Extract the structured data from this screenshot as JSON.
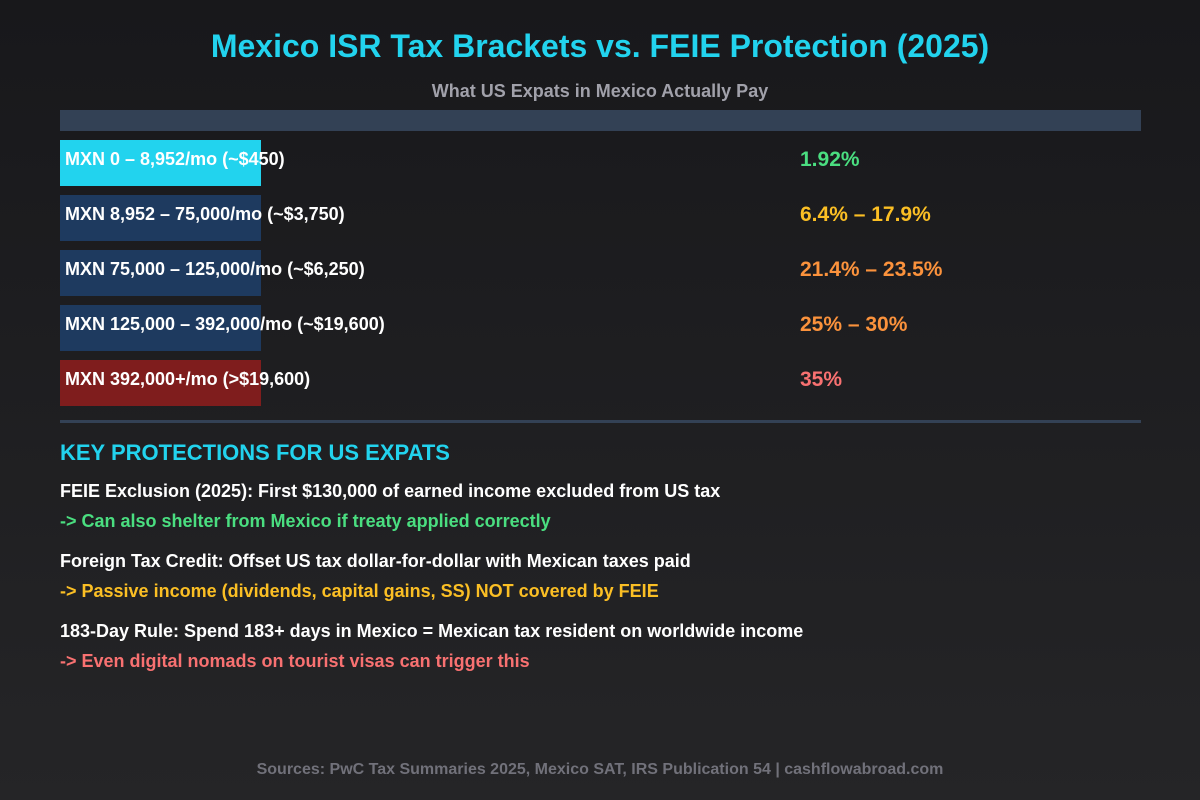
{
  "header": {
    "title": "Mexico ISR Tax Brackets vs. FEIE Protection (2025)",
    "subtitle": "What US Expats in Mexico Actually Pay"
  },
  "brackets": [
    {
      "label": "MXN 0 – 8,952/mo (~$450)",
      "rate": "1.92%",
      "bar_color": "#22d3ee",
      "rate_color": "#4ade80"
    },
    {
      "label": "MXN 8,952 – 75,000/mo (~$3,750)",
      "rate": "6.4% – 17.9%",
      "bar_color": "#1e3a5f",
      "rate_color": "#fbbf24"
    },
    {
      "label": "MXN 75,000 – 125,000/mo (~$6,250)",
      "rate": "21.4% – 23.5%",
      "bar_color": "#1e3a5f",
      "rate_color": "#fb923c"
    },
    {
      "label": "MXN 125,000 – 392,000/mo (~$19,600)",
      "rate": "25% – 30%",
      "bar_color": "#1e3a5f",
      "rate_color": "#fb923c"
    },
    {
      "label": "MXN 392,000+/mo (>$19,600)",
      "rate": "35%",
      "bar_color": "#7f1d1d",
      "rate_color": "#f87171"
    }
  ],
  "protections": {
    "title": "KEY PROTECTIONS FOR US EXPATS",
    "items": [
      {
        "text": "FEIE Exclusion (2025): First $130,000 of earned income excluded from US tax",
        "note": "-> Can also shelter from Mexico if treaty applied correctly",
        "note_color": "#4ade80"
      },
      {
        "text": "Foreign Tax Credit: Offset US tax dollar-for-dollar with Mexican taxes paid",
        "note": "-> Passive income (dividends, capital gains, SS) NOT covered by FEIE",
        "note_color": "#fbbf24"
      },
      {
        "text": "183-Day Rule: Spend 183+ days in Mexico = Mexican tax resident on worldwide income",
        "note": "-> Even digital nomads on tourist visas can trigger this",
        "note_color": "#f87171"
      }
    ]
  },
  "footer": "Sources: PwC Tax Summaries 2025, Mexico SAT, IRS Publication 54 | cashflowabroad.com"
}
